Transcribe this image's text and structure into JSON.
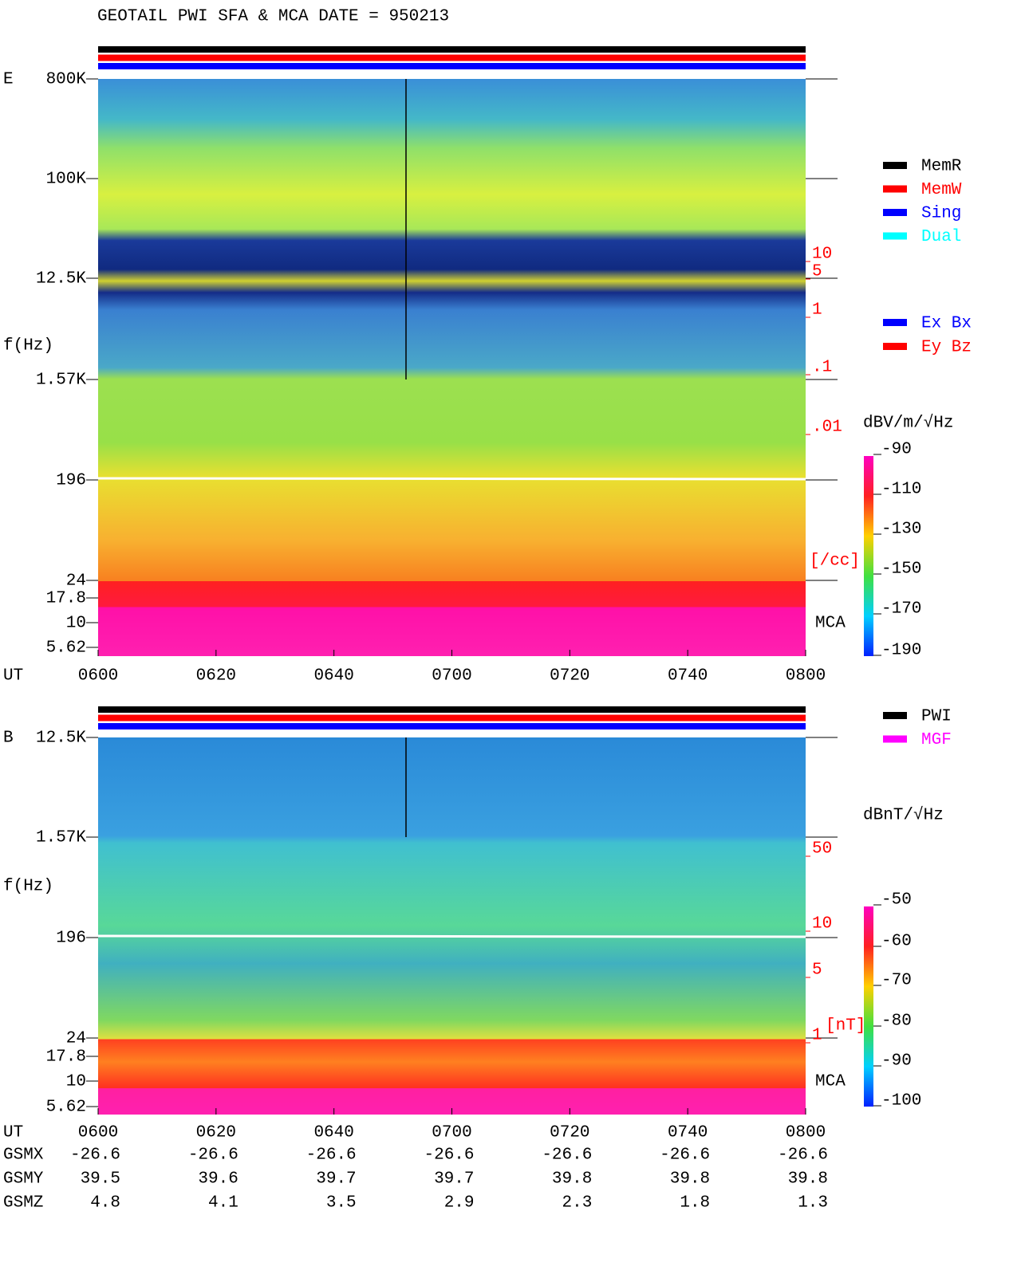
{
  "title": "GEOTAIL   PWI SFA & MCA   DATE = 950213",
  "panels": [
    {
      "label": "E",
      "y_axis_label": "f(Hz)",
      "freq_ticks": [
        "800K",
        "100K",
        "12.5K",
        "1.57K",
        "196",
        "24",
        "17.8",
        "10",
        "5.62"
      ],
      "density_ticks": [
        "10",
        "5",
        "1",
        ".1",
        ".01"
      ],
      "density_unit": "[/cc]",
      "mca_label": "MCA",
      "time_label": "UT",
      "time_ticks": [
        "0600",
        "0620",
        "0640",
        "0700",
        "0720",
        "0740",
        "0800"
      ],
      "legend": [
        {
          "name": "MemR",
          "color": "#000000"
        },
        {
          "name": "MemW",
          "color": "#ff0000"
        },
        {
          "name": "Sing",
          "color": "#0000ff"
        },
        {
          "name": "Dual",
          "color": "#00ffff"
        }
      ],
      "legend2": [
        {
          "name": "Ex Bx",
          "color": "#0000ff"
        },
        {
          "name": "Ey Bz",
          "color": "#ff0000"
        }
      ],
      "colorbar": {
        "unit": "dBV/m/√Hz",
        "ticks": [
          -90,
          -110,
          -130,
          -150,
          -170,
          -190
        ]
      }
    },
    {
      "label": "B",
      "y_axis_label": "f(Hz)",
      "freq_ticks": [
        "12.5K",
        "1.57K",
        "196",
        "24",
        "17.8",
        "10",
        "5.62"
      ],
      "density_ticks": [
        "50",
        "10",
        "5",
        "1"
      ],
      "density_unit": "[nT]",
      "mca_label": "MCA",
      "time_label": "UT",
      "time_ticks": [
        "0600",
        "0620",
        "0640",
        "0700",
        "0720",
        "0740",
        "0800"
      ],
      "legend": [
        {
          "name": "PWI",
          "color": "#000000"
        },
        {
          "name": "MGF",
          "color": "#ff00ff"
        }
      ],
      "colorbar": {
        "unit": "dBnT/√Hz",
        "ticks": [
          -50,
          -60,
          -70,
          -80,
          -90,
          -100
        ]
      }
    }
  ],
  "orbit": {
    "rows": [
      {
        "name": "GSMX",
        "values": [
          -26.6,
          -26.6,
          -26.6,
          -26.6,
          -26.6,
          -26.6,
          -26.6
        ]
      },
      {
        "name": "GSMY",
        "values": [
          39.5,
          39.6,
          39.7,
          39.7,
          39.8,
          39.8,
          39.8
        ]
      },
      {
        "name": "GSMZ",
        "values": [
          4.8,
          4.1,
          3.5,
          2.9,
          2.3,
          1.8,
          1.3
        ]
      }
    ]
  }
}
